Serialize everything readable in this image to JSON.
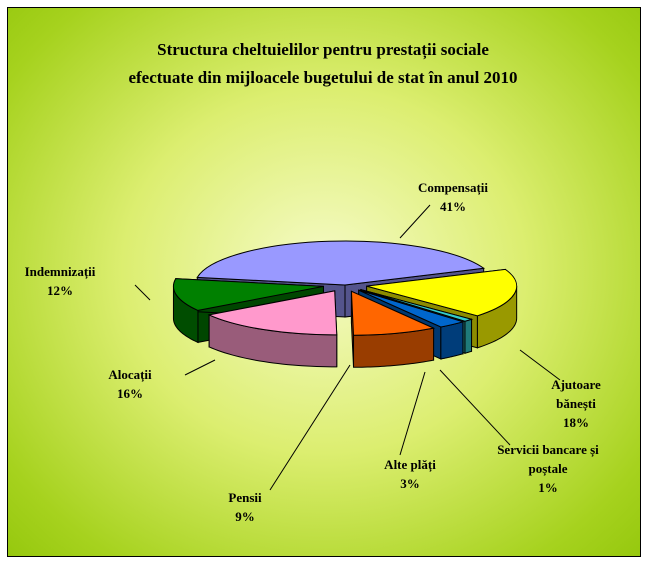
{
  "chart_data": {
    "type": "pie3d",
    "title": "Structura cheltuielilor pentru prestații sociale",
    "subtitle": "efectuate din mijloacele bugetului de stat în anul 2010",
    "categories": [
      "Compensații",
      "Ajutoare bănești",
      "Servicii bancare și poștale",
      "Alte plăți",
      "Pensii",
      "Alocații",
      "Indemnizații"
    ],
    "values": [
      41,
      18,
      1,
      3,
      9,
      16,
      12
    ],
    "value_labels": [
      "41%",
      "18%",
      "1%",
      "3%",
      "9%",
      "16%",
      "12%"
    ],
    "colors": [
      "#9999ff",
      "#ffff00",
      "#33cccc",
      "#0066cc",
      "#ff6600",
      "#ff99cc",
      "#008000"
    ]
  }
}
